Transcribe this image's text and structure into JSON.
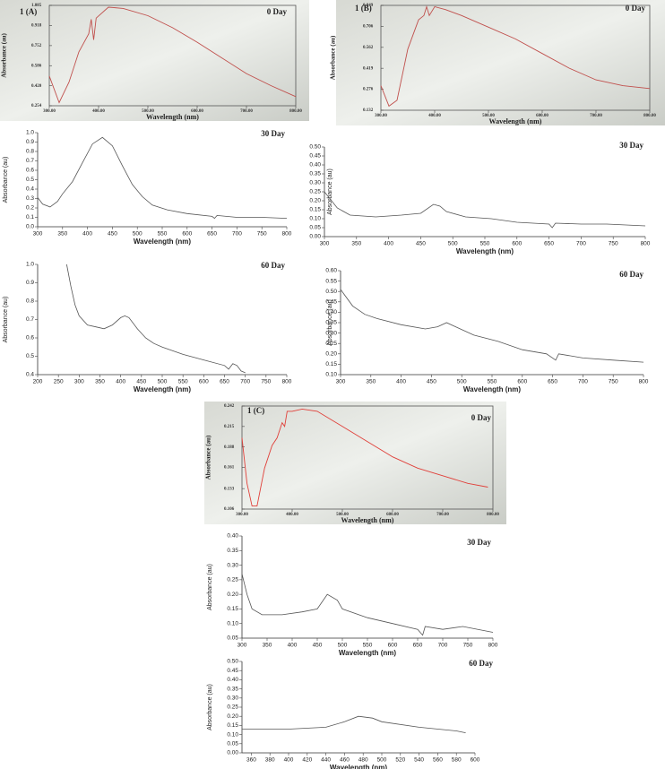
{
  "chart_data": [
    {
      "type": "line",
      "panel_label": "1 (A)",
      "title": "0 Day",
      "xlabel": "Wavelength (nm)",
      "ylabel": "Absorbance (au)",
      "color": "#c0504d",
      "photo": true,
      "x": [
        300,
        320,
        340,
        360,
        380,
        385,
        390,
        395,
        420,
        450,
        500,
        550,
        600,
        650,
        700,
        750,
        800
      ],
      "values": [
        0.5,
        0.28,
        0.45,
        0.7,
        0.85,
        0.97,
        0.8,
        0.98,
        1.07,
        1.06,
        1.0,
        0.9,
        0.78,
        0.65,
        0.52,
        0.42,
        0.33
      ],
      "xlim": [
        300,
        800
      ],
      "ylim": [
        0.254,
        1.085
      ],
      "xticks": [
        {
          "value": 300,
          "label": "300.00"
        },
        {
          "value": 400,
          "label": "400.00"
        },
        {
          "value": 500,
          "label": "500.00"
        },
        {
          "value": 600,
          "label": "600.00"
        },
        {
          "value": 700,
          "label": "700.00"
        },
        {
          "value": 800,
          "label": "800.00"
        }
      ],
      "yticks": [
        0.254,
        {
          "value": 0.42,
          "label": "0.420"
        },
        0.586,
        0.752,
        0.918,
        1.085
      ]
    },
    {
      "type": "line",
      "panel_label": "1 (B)",
      "title": "0 Day",
      "xlabel": "Wavelength (nm)",
      "ylabel": "Absorbance (au)",
      "color": "#c0504d",
      "photo": true,
      "x": [
        300,
        315,
        330,
        350,
        370,
        380,
        385,
        390,
        400,
        420,
        450,
        500,
        550,
        600,
        650,
        700,
        750,
        800
      ],
      "values": [
        0.3,
        0.16,
        0.2,
        0.55,
        0.75,
        0.78,
        0.84,
        0.78,
        0.84,
        0.82,
        0.78,
        0.7,
        0.62,
        0.52,
        0.42,
        0.34,
        0.3,
        0.28
      ],
      "xlim": [
        300,
        800
      ],
      "ylim": [
        0.132,
        0.849
      ],
      "xticks": [
        {
          "value": 300,
          "label": "300.00"
        },
        {
          "value": 400,
          "label": "400.00"
        },
        {
          "value": 500,
          "label": "500.00"
        },
        {
          "value": 600,
          "label": "600.00"
        },
        {
          "value": 700,
          "label": "700.00"
        },
        {
          "value": 800,
          "label": "800.00"
        }
      ],
      "yticks": [
        0.132,
        0.276,
        0.419,
        0.562,
        0.706,
        0.849
      ]
    },
    {
      "type": "line",
      "title": "30 Day",
      "xlabel": "Wavelength (nm)",
      "ylabel": "Absorbance (au)",
      "color": "#555555",
      "x": [
        300,
        310,
        325,
        340,
        350,
        370,
        390,
        410,
        430,
        450,
        470,
        490,
        510,
        530,
        560,
        600,
        650,
        655,
        660,
        700,
        750,
        800
      ],
      "values": [
        0.31,
        0.24,
        0.21,
        0.27,
        0.35,
        0.48,
        0.68,
        0.88,
        0.95,
        0.86,
        0.65,
        0.45,
        0.32,
        0.23,
        0.18,
        0.14,
        0.11,
        0.09,
        0.12,
        0.1,
        0.1,
        0.09
      ],
      "xlim": [
        300,
        800
      ],
      "ylim": [
        0,
        1
      ],
      "xticks": [
        300,
        350,
        400,
        450,
        500,
        550,
        600,
        650,
        700,
        750,
        800
      ],
      "yticks": [
        {
          "value": 0,
          "label": "0.0"
        },
        0.1,
        0.2,
        0.3,
        0.4,
        0.5,
        0.6,
        0.7,
        0.8,
        0.9,
        {
          "value": 1,
          "label": "1.0"
        }
      ]
    },
    {
      "type": "line",
      "title": "30 Day",
      "xlabel": "Wavelength (nm)",
      "ylabel": "Absorbance (au)",
      "color": "#555555",
      "x": [
        300,
        320,
        340,
        380,
        420,
        450,
        470,
        480,
        490,
        520,
        560,
        600,
        650,
        655,
        660,
        700,
        740,
        800
      ],
      "values": [
        0.25,
        0.16,
        0.12,
        0.11,
        0.12,
        0.13,
        0.18,
        0.17,
        0.14,
        0.11,
        0.1,
        0.08,
        0.07,
        0.05,
        0.075,
        0.07,
        0.07,
        0.06
      ],
      "xlim": [
        300,
        800
      ],
      "ylim": [
        0,
        0.5
      ],
      "xticks": [
        300,
        350,
        400,
        450,
        500,
        550,
        600,
        650,
        700,
        750,
        800
      ],
      "yticks": [
        {
          "value": 0,
          "label": "0.00"
        },
        0.05,
        {
          "value": 0.1,
          "label": "0.10"
        },
        0.15,
        {
          "value": 0.2,
          "label": "0.20"
        },
        0.25,
        {
          "value": 0.3,
          "label": "0.30"
        },
        0.35,
        {
          "value": 0.4,
          "label": "0.40"
        },
        0.45,
        {
          "value": 0.5,
          "label": "0.50"
        }
      ]
    },
    {
      "type": "line",
      "title": "60 Day",
      "xlabel": "Wavelength (nm)",
      "ylabel": "Absorbance (au)",
      "color": "#555555",
      "x": [
        270,
        280,
        290,
        300,
        320,
        340,
        360,
        380,
        400,
        410,
        420,
        440,
        460,
        480,
        500,
        550,
        600,
        650,
        660,
        670,
        680,
        690,
        700
      ],
      "values": [
        1.0,
        0.88,
        0.78,
        0.72,
        0.67,
        0.66,
        0.65,
        0.67,
        0.71,
        0.72,
        0.71,
        0.65,
        0.6,
        0.57,
        0.55,
        0.51,
        0.48,
        0.45,
        0.43,
        0.46,
        0.45,
        0.42,
        0.41
      ],
      "xlim": [
        200,
        800
      ],
      "ylim": [
        0.4,
        1
      ],
      "xticks": [
        200,
        250,
        300,
        350,
        400,
        450,
        500,
        550,
        600,
        650,
        700,
        750,
        800
      ],
      "yticks": [
        0.4,
        0.5,
        0.6,
        0.7,
        0.8,
        0.9,
        {
          "value": 1,
          "label": "1.0"
        }
      ]
    },
    {
      "type": "line",
      "title": "60 Day",
      "xlabel": "Wavelength (nm)",
      "ylabel": "Absorbance (au)",
      "color": "#555555",
      "x": [
        300,
        320,
        340,
        360,
        400,
        440,
        460,
        475,
        490,
        520,
        560,
        600,
        640,
        655,
        660,
        700,
        750,
        800
      ],
      "values": [
        0.51,
        0.43,
        0.39,
        0.37,
        0.34,
        0.32,
        0.33,
        0.35,
        0.33,
        0.29,
        0.26,
        0.22,
        0.2,
        0.17,
        0.2,
        0.18,
        0.17,
        0.16
      ],
      "xlim": [
        300,
        800
      ],
      "ylim": [
        0.1,
        0.6
      ],
      "xticks": [
        300,
        350,
        400,
        450,
        500,
        550,
        600,
        650,
        700,
        750,
        800
      ],
      "yticks": [
        {
          "value": 0.1,
          "label": "0.10"
        },
        0.15,
        {
          "value": 0.2,
          "label": "0.20"
        },
        0.25,
        {
          "value": 0.3,
          "label": "0.30"
        },
        0.35,
        {
          "value": 0.4,
          "label": "0.40"
        },
        0.45,
        {
          "value": 0.5,
          "label": "0.50"
        },
        0.55,
        {
          "value": 0.6,
          "label": "0.60"
        }
      ]
    },
    {
      "type": "line",
      "panel_label": "1 (C)",
      "title": "0 Day",
      "xlabel": "Wavelength (nm)",
      "ylabel": "Absorbance (au)",
      "color": "#e0403a",
      "photo": true,
      "x": [
        300,
        310,
        320,
        330,
        345,
        360,
        370,
        380,
        385,
        390,
        400,
        420,
        450,
        500,
        550,
        600,
        650,
        700,
        750,
        790
      ],
      "values": [
        0.2,
        0.14,
        0.11,
        0.11,
        0.16,
        0.19,
        0.2,
        0.22,
        0.215,
        0.235,
        0.235,
        0.238,
        0.235,
        0.215,
        0.195,
        0.175,
        0.16,
        0.15,
        0.14,
        0.135
      ],
      "xlim": [
        300,
        800
      ],
      "ylim": [
        0.106,
        0.242
      ],
      "xticks": [
        {
          "value": 300,
          "label": "300.00"
        },
        {
          "value": 400,
          "label": "400.00"
        },
        {
          "value": 500,
          "label": "500.00"
        },
        {
          "value": 600,
          "label": "600.00"
        },
        {
          "value": 700,
          "label": "700.00"
        },
        {
          "value": 800,
          "label": "800.00"
        }
      ],
      "yticks": [
        0.106,
        0.133,
        0.161,
        0.188,
        0.215,
        0.242
      ]
    },
    {
      "type": "line",
      "title": "30 Day",
      "xlabel": "Wavelength (nm)",
      "ylabel": "Absorbance (au)",
      "color": "#555555",
      "x": [
        300,
        310,
        320,
        340,
        380,
        420,
        450,
        470,
        490,
        500,
        550,
        600,
        650,
        660,
        665,
        700,
        740,
        800
      ],
      "values": [
        0.27,
        0.2,
        0.15,
        0.13,
        0.13,
        0.14,
        0.15,
        0.2,
        0.18,
        0.15,
        0.12,
        0.1,
        0.08,
        0.06,
        0.09,
        0.08,
        0.09,
        0.07
      ],
      "xlim": [
        300,
        800
      ],
      "ylim": [
        0.05,
        0.4
      ],
      "xticks": [
        300,
        350,
        400,
        450,
        500,
        550,
        600,
        650,
        700,
        750,
        800
      ],
      "yticks": [
        0.05,
        {
          "value": 0.1,
          "label": "0.10"
        },
        0.15,
        {
          "value": 0.2,
          "label": "0.20"
        },
        0.25,
        {
          "value": 0.3,
          "label": "0.30"
        },
        0.35,
        {
          "value": 0.4,
          "label": "0.40"
        }
      ]
    },
    {
      "type": "line",
      "title": "60 Day",
      "xlabel": "Wavelength (nm)",
      "ylabel": "Absorbance (au)",
      "color": "#555555",
      "x": [
        350,
        400,
        440,
        460,
        475,
        490,
        500,
        540,
        580,
        590
      ],
      "values": [
        0.13,
        0.13,
        0.14,
        0.17,
        0.2,
        0.19,
        0.17,
        0.14,
        0.12,
        0.11
      ],
      "xlim": [
        350,
        600
      ],
      "ylim": [
        0,
        0.5
      ],
      "xticks": [
        360,
        380,
        400,
        420,
        440,
        460,
        480,
        500,
        520,
        540,
        560,
        580,
        600
      ],
      "yticks": [
        {
          "value": 0,
          "label": "0.00"
        },
        0.05,
        {
          "value": 0.1,
          "label": "0.10"
        },
        0.15,
        {
          "value": 0.2,
          "label": "0.20"
        },
        0.25,
        {
          "value": 0.3,
          "label": "0.30"
        },
        0.35,
        {
          "value": 0.4,
          "label": "0.40"
        },
        0.45,
        {
          "value": 0.5,
          "label": "0.50"
        }
      ]
    }
  ]
}
